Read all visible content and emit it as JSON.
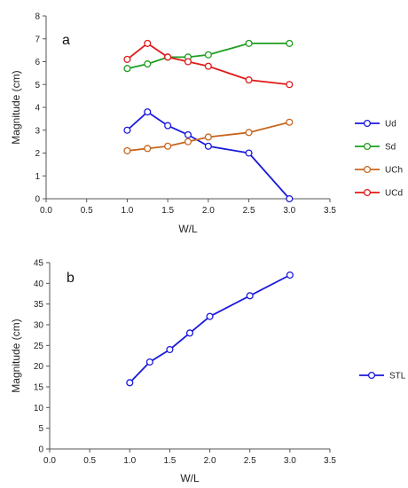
{
  "chart_data": [
    {
      "type": "line",
      "panel_label": "a",
      "xlabel": "W/L",
      "ylabel": "Magnitude (cm)",
      "xlim": [
        0,
        3.5
      ],
      "ylim": [
        0,
        8
      ],
      "x_ticks": [
        "0.0",
        "0.5",
        "1.0",
        "1.5",
        "2.0",
        "2.5",
        "3.0",
        "3.5"
      ],
      "y_ticks": [
        "0",
        "1",
        "2",
        "3",
        "4",
        "5",
        "6",
        "7",
        "8"
      ],
      "grid": false,
      "legend_position": "right",
      "x": [
        1.0,
        1.25,
        1.5,
        1.75,
        2.0,
        2.5,
        3.0
      ],
      "series": [
        {
          "name": "Ud",
          "color": "#1a1adb",
          "values": [
            3.0,
            3.8,
            3.2,
            2.8,
            2.3,
            2.0,
            0.0
          ]
        },
        {
          "name": "Sd",
          "color": "#1e9e1e",
          "values": [
            5.7,
            5.9,
            6.2,
            6.2,
            6.3,
            6.8,
            6.8
          ]
        },
        {
          "name": "UCh",
          "color": "#c8661e",
          "values": [
            2.1,
            2.2,
            2.3,
            2.5,
            2.7,
            2.9,
            3.35
          ]
        },
        {
          "name": "UCd",
          "color": "#e01a1a",
          "values": [
            6.1,
            6.8,
            6.2,
            6.0,
            5.8,
            5.2,
            5.0
          ]
        }
      ]
    },
    {
      "type": "line",
      "panel_label": "b",
      "xlabel": "W/L",
      "ylabel": "Magnitude (cm)",
      "xlim": [
        0,
        3.5
      ],
      "ylim": [
        0,
        45
      ],
      "x_ticks": [
        "0.0",
        "0.5",
        "1.0",
        "1.5",
        "2.0",
        "2.5",
        "3.0",
        "3.5"
      ],
      "y_ticks": [
        "0",
        "5",
        "10",
        "15",
        "20",
        "25",
        "30",
        "35",
        "40",
        "45"
      ],
      "grid": false,
      "legend_position": "right",
      "x": [
        1.0,
        1.25,
        1.5,
        1.75,
        2.0,
        2.5,
        3.0
      ],
      "series": [
        {
          "name": "STL",
          "color": "#1a1adb",
          "values": [
            16,
            21,
            24,
            28,
            32,
            37,
            42
          ]
        }
      ]
    }
  ]
}
